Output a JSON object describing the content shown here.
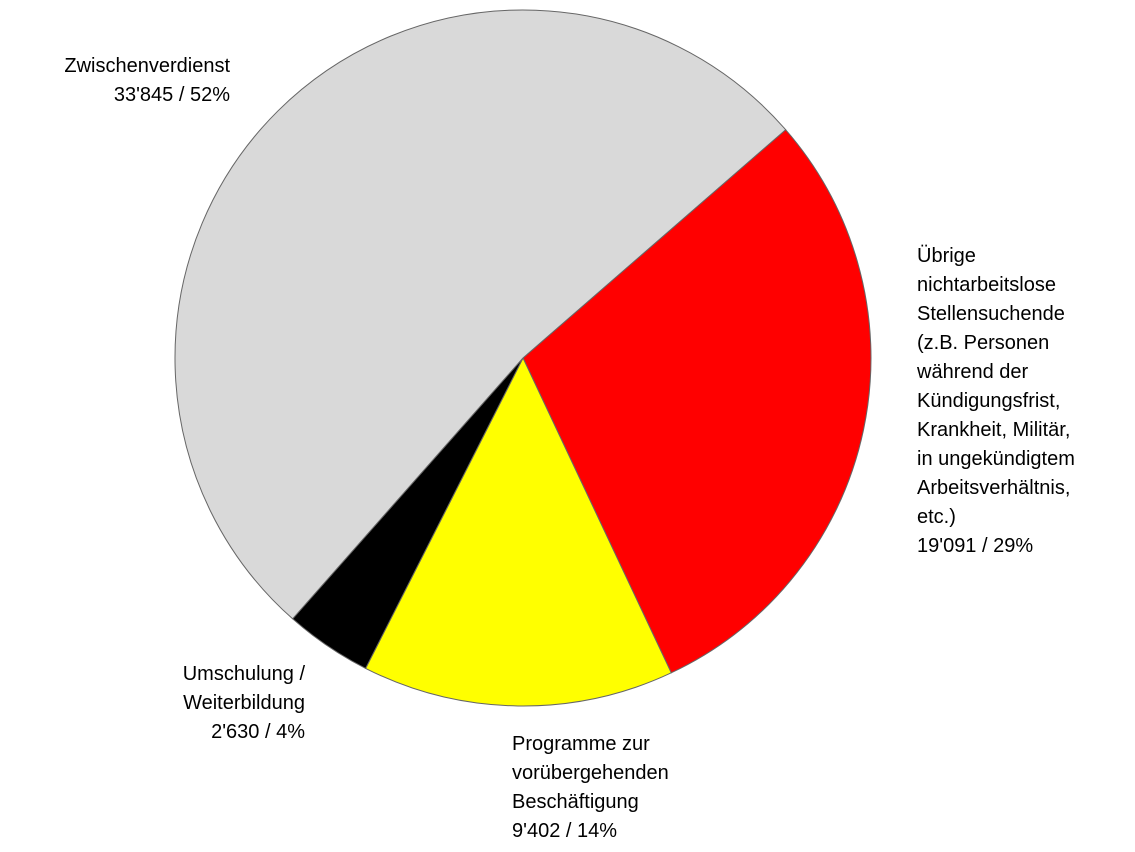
{
  "chart_data": {
    "type": "pie",
    "categories": [
      "Übrige\nnichtarbeitslose\nStellensuchende\n(z.B. Personen\nwährend der\nKündigungsfrist,\nKrankheit, Militär,\nin ungekündigtem\nArbeitsverhältnis,\netc.)",
      "Programme zur\nvorübergehenden\nBeschäftigung",
      "Umschulung /\nWeiterbildung",
      "Zwischenverdienst"
    ],
    "values": [
      19091,
      9402,
      2630,
      33845
    ],
    "value_labels": [
      "19'091 / 29%",
      "9'402 / 14%",
      "2'630 / 4%",
      "33'845 / 52%"
    ],
    "colors": [
      "#ff0000",
      "#ffff00",
      "#000000",
      "#d9d9d9"
    ]
  }
}
